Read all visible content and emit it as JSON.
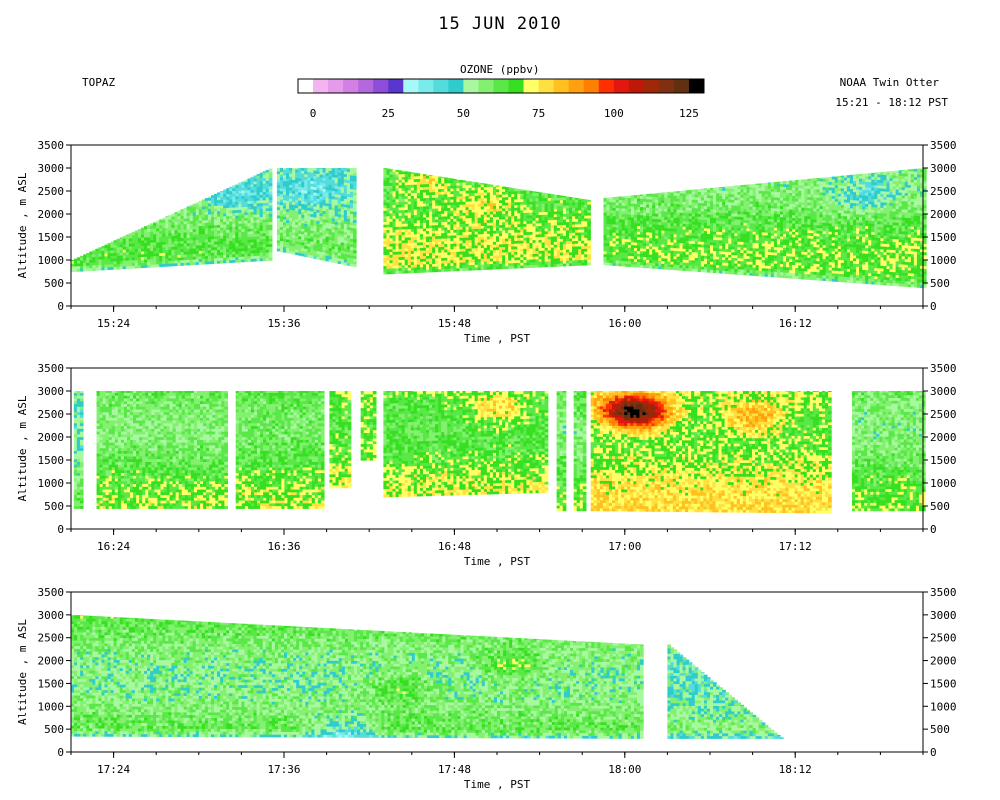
{
  "header": {
    "title": "15 JUN 2010",
    "instrument": "TOPAZ",
    "platform": "NOAA Twin Otter",
    "time_range": "15:21 - 18:12 PST"
  },
  "colorbar": {
    "label": "OZONE (ppbv)",
    "ticks": [
      0,
      25,
      50,
      75,
      100,
      125
    ],
    "range": [
      -5,
      130
    ],
    "colors": [
      "#ffffff",
      "#f4b4f0",
      "#e69aea",
      "#d280e4",
      "#b468de",
      "#8e4ed8",
      "#5a36cc",
      "#a8f8f8",
      "#7aeaea",
      "#54dcdc",
      "#30cccc",
      "#a8f8a0",
      "#84f070",
      "#5ae848",
      "#36e020",
      "#ffff66",
      "#ffe040",
      "#ffc020",
      "#ffa010",
      "#ff8000",
      "#ff3000",
      "#e01810",
      "#c01808",
      "#a02808",
      "#803010",
      "#603010",
      "#000000"
    ]
  },
  "chart_data": [
    {
      "type": "heatmap",
      "title": "",
      "xlabel": "Time , PST",
      "ylabel": "Altitude , m ASL",
      "xlim": [
        "15:21",
        "16:21"
      ],
      "xticks": [
        "15:24",
        "15:36",
        "15:48",
        "16:00",
        "16:12"
      ],
      "ylim": [
        0,
        3500
      ],
      "yticks": [
        0,
        500,
        1000,
        1500,
        2000,
        2500,
        3000,
        3500
      ],
      "value_units": "ppbv",
      "segments": [
        {
          "start": "15:21.0",
          "end": "15:35.0",
          "bottom_start": 750,
          "bottom_end": 1000,
          "top_start": 1000,
          "top_end": 3000,
          "mean_ozone": 58
        },
        {
          "start": "15:35.5",
          "end": "15:41.0",
          "bottom_start": 1200,
          "bottom_end": 850,
          "top_start": 3000,
          "top_end": 3000,
          "mean_ozone": 55
        },
        {
          "start": "15:43.0",
          "end": "15:57.5",
          "bottom_start": 700,
          "bottom_end": 900,
          "top_start": 3000,
          "top_end": 2300,
          "mean_ozone": 67
        },
        {
          "start": "15:58.5",
          "end": "16:21.0",
          "bottom_start": 900,
          "bottom_end": 400,
          "top_start": 2350,
          "top_end": 3000,
          "mean_ozone": 62
        }
      ],
      "features": [
        {
          "time": "15:33",
          "altitude": 2400,
          "ozone": 45
        },
        {
          "time": "15:38",
          "altitude": 2500,
          "ozone": 45
        },
        {
          "time": "15:46",
          "altitude": 2700,
          "ozone": 80
        },
        {
          "time": "15:50",
          "altitude": 2200,
          "ozone": 78
        },
        {
          "time": "16:17",
          "altitude": 2400,
          "ozone": 48
        }
      ]
    },
    {
      "type": "heatmap",
      "title": "",
      "xlabel": "Time , PST",
      "ylabel": "Altitude , m ASL",
      "xlim": [
        "16:21",
        "17:21"
      ],
      "xticks": [
        "16:24",
        "16:36",
        "16:48",
        "17:00",
        "17:12"
      ],
      "ylim": [
        0,
        3500
      ],
      "yticks": [
        0,
        500,
        1000,
        1500,
        2000,
        2500,
        3000,
        3500
      ],
      "value_units": "ppbv",
      "segments": [
        {
          "start": "16:21.2",
          "end": "16:21.8",
          "bottom_start": 450,
          "bottom_end": 450,
          "top_start": 3000,
          "top_end": 3000,
          "mean_ozone": 55
        },
        {
          "start": "16:22.8",
          "end": "16:31.8",
          "bottom_start": 450,
          "bottom_end": 450,
          "top_start": 3000,
          "top_end": 3000,
          "mean_ozone": 63
        },
        {
          "start": "16:32.6",
          "end": "16:38.6",
          "bottom_start": 450,
          "bottom_end": 450,
          "top_start": 3000,
          "top_end": 3000,
          "mean_ozone": 65
        },
        {
          "start": "16:39.2",
          "end": "16:40.6",
          "bottom_start": 900,
          "bottom_end": 900,
          "top_start": 3000,
          "top_end": 3000,
          "mean_ozone": 70
        },
        {
          "start": "16:41.4",
          "end": "16:42.4",
          "bottom_start": 1500,
          "bottom_end": 1500,
          "top_start": 3000,
          "top_end": 3000,
          "mean_ozone": 72
        },
        {
          "start": "16:43.0",
          "end": "16:54.5",
          "bottom_start": 700,
          "bottom_end": 800,
          "top_start": 3000,
          "top_end": 3000,
          "mean_ozone": 68
        },
        {
          "start": "16:55.2",
          "end": "16:55.8",
          "bottom_start": 400,
          "bottom_end": 400,
          "top_start": 3000,
          "top_end": 3000,
          "mean_ozone": 62
        },
        {
          "start": "16:56.4",
          "end": "16:57.2",
          "bottom_start": 400,
          "bottom_end": 400,
          "top_start": 3000,
          "top_end": 3000,
          "mean_ozone": 62
        },
        {
          "start": "16:57.6",
          "end": "17:14.4",
          "bottom_start": 400,
          "bottom_end": 350,
          "top_start": 3000,
          "top_end": 3000,
          "mean_ozone": 72
        },
        {
          "start": "17:16.0",
          "end": "17:21.0",
          "bottom_start": 400,
          "bottom_end": 400,
          "top_start": 3000,
          "top_end": 3000,
          "mean_ozone": 62
        }
      ],
      "features": [
        {
          "time": "17:00",
          "altitude": 2600,
          "ozone": 100
        },
        {
          "time": "17:01",
          "altitude": 2500,
          "ozone": 110
        },
        {
          "time": "17:09",
          "altitude": 2400,
          "ozone": 90
        },
        {
          "time": "16:51",
          "altitude": 2600,
          "ozone": 82
        }
      ]
    },
    {
      "type": "heatmap",
      "title": "",
      "xlabel": "Time , PST",
      "ylabel": "Altitude , m ASL",
      "xlim": [
        "17:21",
        "18:21"
      ],
      "xticks": [
        "17:24",
        "17:36",
        "17:48",
        "18:00",
        "18:12"
      ],
      "ylim": [
        0,
        3500
      ],
      "yticks": [
        0,
        500,
        1000,
        1500,
        2000,
        2500,
        3000,
        3500
      ],
      "value_units": "ppbv",
      "segments": [
        {
          "start": "17:21.0",
          "end": "18:01.2",
          "bottom_start": 350,
          "bottom_end": 300,
          "top_start": 3000,
          "top_end": 2350,
          "mean_ozone": 60
        },
        {
          "start": "18:03.0",
          "end": "18:11.0",
          "bottom_start": 300,
          "bottom_end": 300,
          "top_start": 2350,
          "top_end": 300,
          "mean_ozone": 55
        }
      ],
      "features": [
        {
          "time": "17:40",
          "altitude": 400,
          "ozone": 45
        },
        {
          "time": "17:44",
          "altitude": 1400,
          "ozone": 70
        },
        {
          "time": "17:52",
          "altitude": 1900,
          "ozone": 72
        }
      ]
    }
  ]
}
